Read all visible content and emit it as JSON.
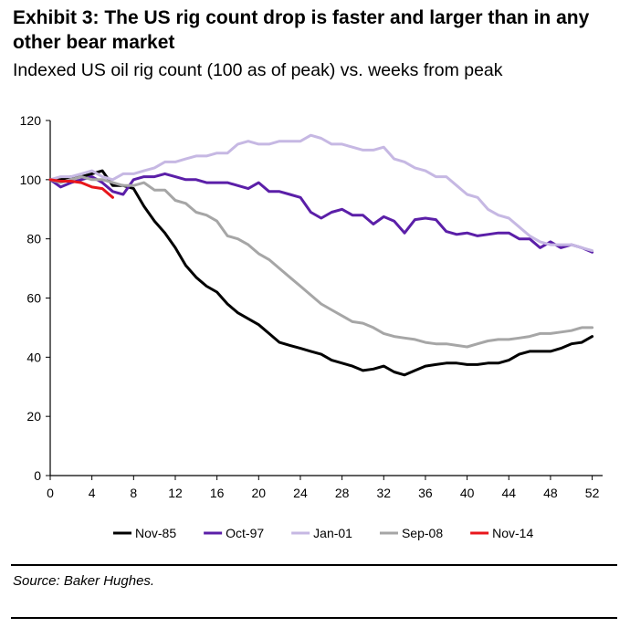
{
  "header": {
    "title": "Exhibit 3: The US rig count drop is faster and larger than in any other bear market",
    "subtitle": "Indexed US oil rig count (100 as of peak) vs. weeks from peak"
  },
  "footer": {
    "source": "Source: Baker Hughes."
  },
  "chart_data": {
    "type": "line",
    "title": "Exhibit 3: The US rig count drop is faster and larger than in any other bear market",
    "subtitle": "Indexed US oil rig count (100 as of peak) vs. weeks from peak",
    "xlabel": "",
    "ylabel": "",
    "xlim": [
      0,
      53
    ],
    "ylim": [
      0,
      120
    ],
    "xticks": [
      0,
      4,
      8,
      12,
      16,
      20,
      24,
      28,
      32,
      36,
      40,
      44,
      48,
      52
    ],
    "yticks": [
      0,
      20,
      40,
      60,
      80,
      100,
      120
    ],
    "grid": false,
    "legend_position": "bottom",
    "series": [
      {
        "name": "Nov-85",
        "color": "#000000",
        "x": [
          0,
          1,
          2,
          3,
          4,
          5,
          6,
          7,
          8,
          9,
          10,
          11,
          12,
          13,
          14,
          15,
          16,
          17,
          18,
          19,
          20,
          21,
          22,
          23,
          24,
          25,
          26,
          27,
          28,
          29,
          30,
          31,
          32,
          33,
          34,
          35,
          36,
          37,
          38,
          39,
          40,
          41,
          42,
          43,
          44,
          45,
          46,
          47,
          48,
          49,
          50,
          51,
          52
        ],
        "y": [
          100,
          100,
          101,
          101,
          102,
          103,
          98,
          98,
          97,
          91,
          86,
          82,
          77,
          71,
          67,
          64,
          62,
          58,
          55,
          53,
          51,
          48,
          45,
          44,
          43,
          42,
          41,
          39,
          38,
          37,
          35.5,
          36,
          37,
          35,
          34,
          35.5,
          37,
          37.5,
          38,
          38,
          37.5,
          37.5,
          38,
          38,
          39,
          41,
          42,
          42,
          42,
          43,
          44.5,
          45,
          47
        ]
      },
      {
        "name": "Oct-97",
        "color": "#5b1fa8",
        "x": [
          0,
          1,
          2,
          3,
          4,
          5,
          6,
          7,
          8,
          9,
          10,
          11,
          12,
          13,
          14,
          15,
          16,
          17,
          18,
          19,
          20,
          21,
          22,
          23,
          24,
          25,
          26,
          27,
          28,
          29,
          30,
          31,
          32,
          33,
          34,
          35,
          36,
          37,
          38,
          39,
          40,
          41,
          42,
          43,
          44,
          45,
          46,
          47,
          48,
          49,
          50,
          51,
          52
        ],
        "y": [
          100,
          97.5,
          99,
          100,
          101,
          99,
          96,
          95,
          100,
          101,
          101,
          102,
          101,
          100,
          100,
          99,
          99,
          99,
          98,
          97,
          99,
          96,
          96,
          95,
          94,
          89,
          87,
          89,
          90,
          88,
          88,
          85,
          87.5,
          86,
          82,
          86.5,
          87,
          86.5,
          82.5,
          81.5,
          82,
          81,
          81.5,
          82,
          82,
          80,
          80,
          77,
          79,
          77,
          78,
          77,
          75.5
        ]
      },
      {
        "name": "Jan-01",
        "color": "#c6b8e3",
        "x": [
          0,
          1,
          2,
          3,
          4,
          5,
          6,
          7,
          8,
          9,
          10,
          11,
          12,
          13,
          14,
          15,
          16,
          17,
          18,
          19,
          20,
          21,
          22,
          23,
          24,
          25,
          26,
          27,
          28,
          29,
          30,
          31,
          32,
          33,
          34,
          35,
          36,
          37,
          38,
          39,
          40,
          41,
          42,
          43,
          44,
          45,
          46,
          47,
          48,
          49,
          50,
          51,
          52
        ],
        "y": [
          100,
          101,
          101,
          102,
          103,
          101,
          100,
          102,
          102,
          103,
          104,
          106,
          106,
          107,
          108,
          108,
          109,
          109,
          112,
          113,
          112,
          112,
          113,
          113,
          113,
          115,
          114,
          112,
          112,
          111,
          110,
          110,
          111,
          107,
          106,
          104,
          103,
          101,
          101,
          98,
          95,
          94,
          90,
          88,
          87,
          84,
          81,
          79,
          78,
          78,
          78,
          77,
          76
        ]
      },
      {
        "name": "Sep-08",
        "color": "#a6a6a6",
        "x": [
          0,
          1,
          2,
          3,
          4,
          5,
          6,
          7,
          8,
          9,
          10,
          11,
          12,
          13,
          14,
          15,
          16,
          17,
          18,
          19,
          20,
          21,
          22,
          23,
          24,
          25,
          26,
          27,
          28,
          29,
          30,
          31,
          32,
          33,
          34,
          35,
          36,
          37,
          38,
          39,
          40,
          41,
          42,
          43,
          44,
          45,
          46,
          47,
          48,
          49,
          50,
          51,
          52
        ],
        "y": [
          100,
          99,
          100,
          101,
          100,
          100,
          99,
          98,
          98,
          99,
          96.5,
          96.5,
          93,
          92,
          89,
          88,
          86,
          81,
          80,
          78,
          75,
          73,
          70,
          67,
          64,
          61,
          58,
          56,
          54,
          52,
          51.5,
          50,
          48,
          47,
          46.5,
          46,
          45,
          44.5,
          44.5,
          44,
          43.5,
          44.5,
          45.5,
          46,
          46,
          46.5,
          47,
          48,
          48,
          48.5,
          49,
          50,
          50
        ]
      },
      {
        "name": "Nov-14",
        "color": "#e8161b",
        "x": [
          0,
          1,
          2,
          3,
          4,
          5,
          6
        ],
        "y": [
          100,
          99.5,
          99.5,
          99,
          97.5,
          97,
          94
        ]
      }
    ]
  }
}
